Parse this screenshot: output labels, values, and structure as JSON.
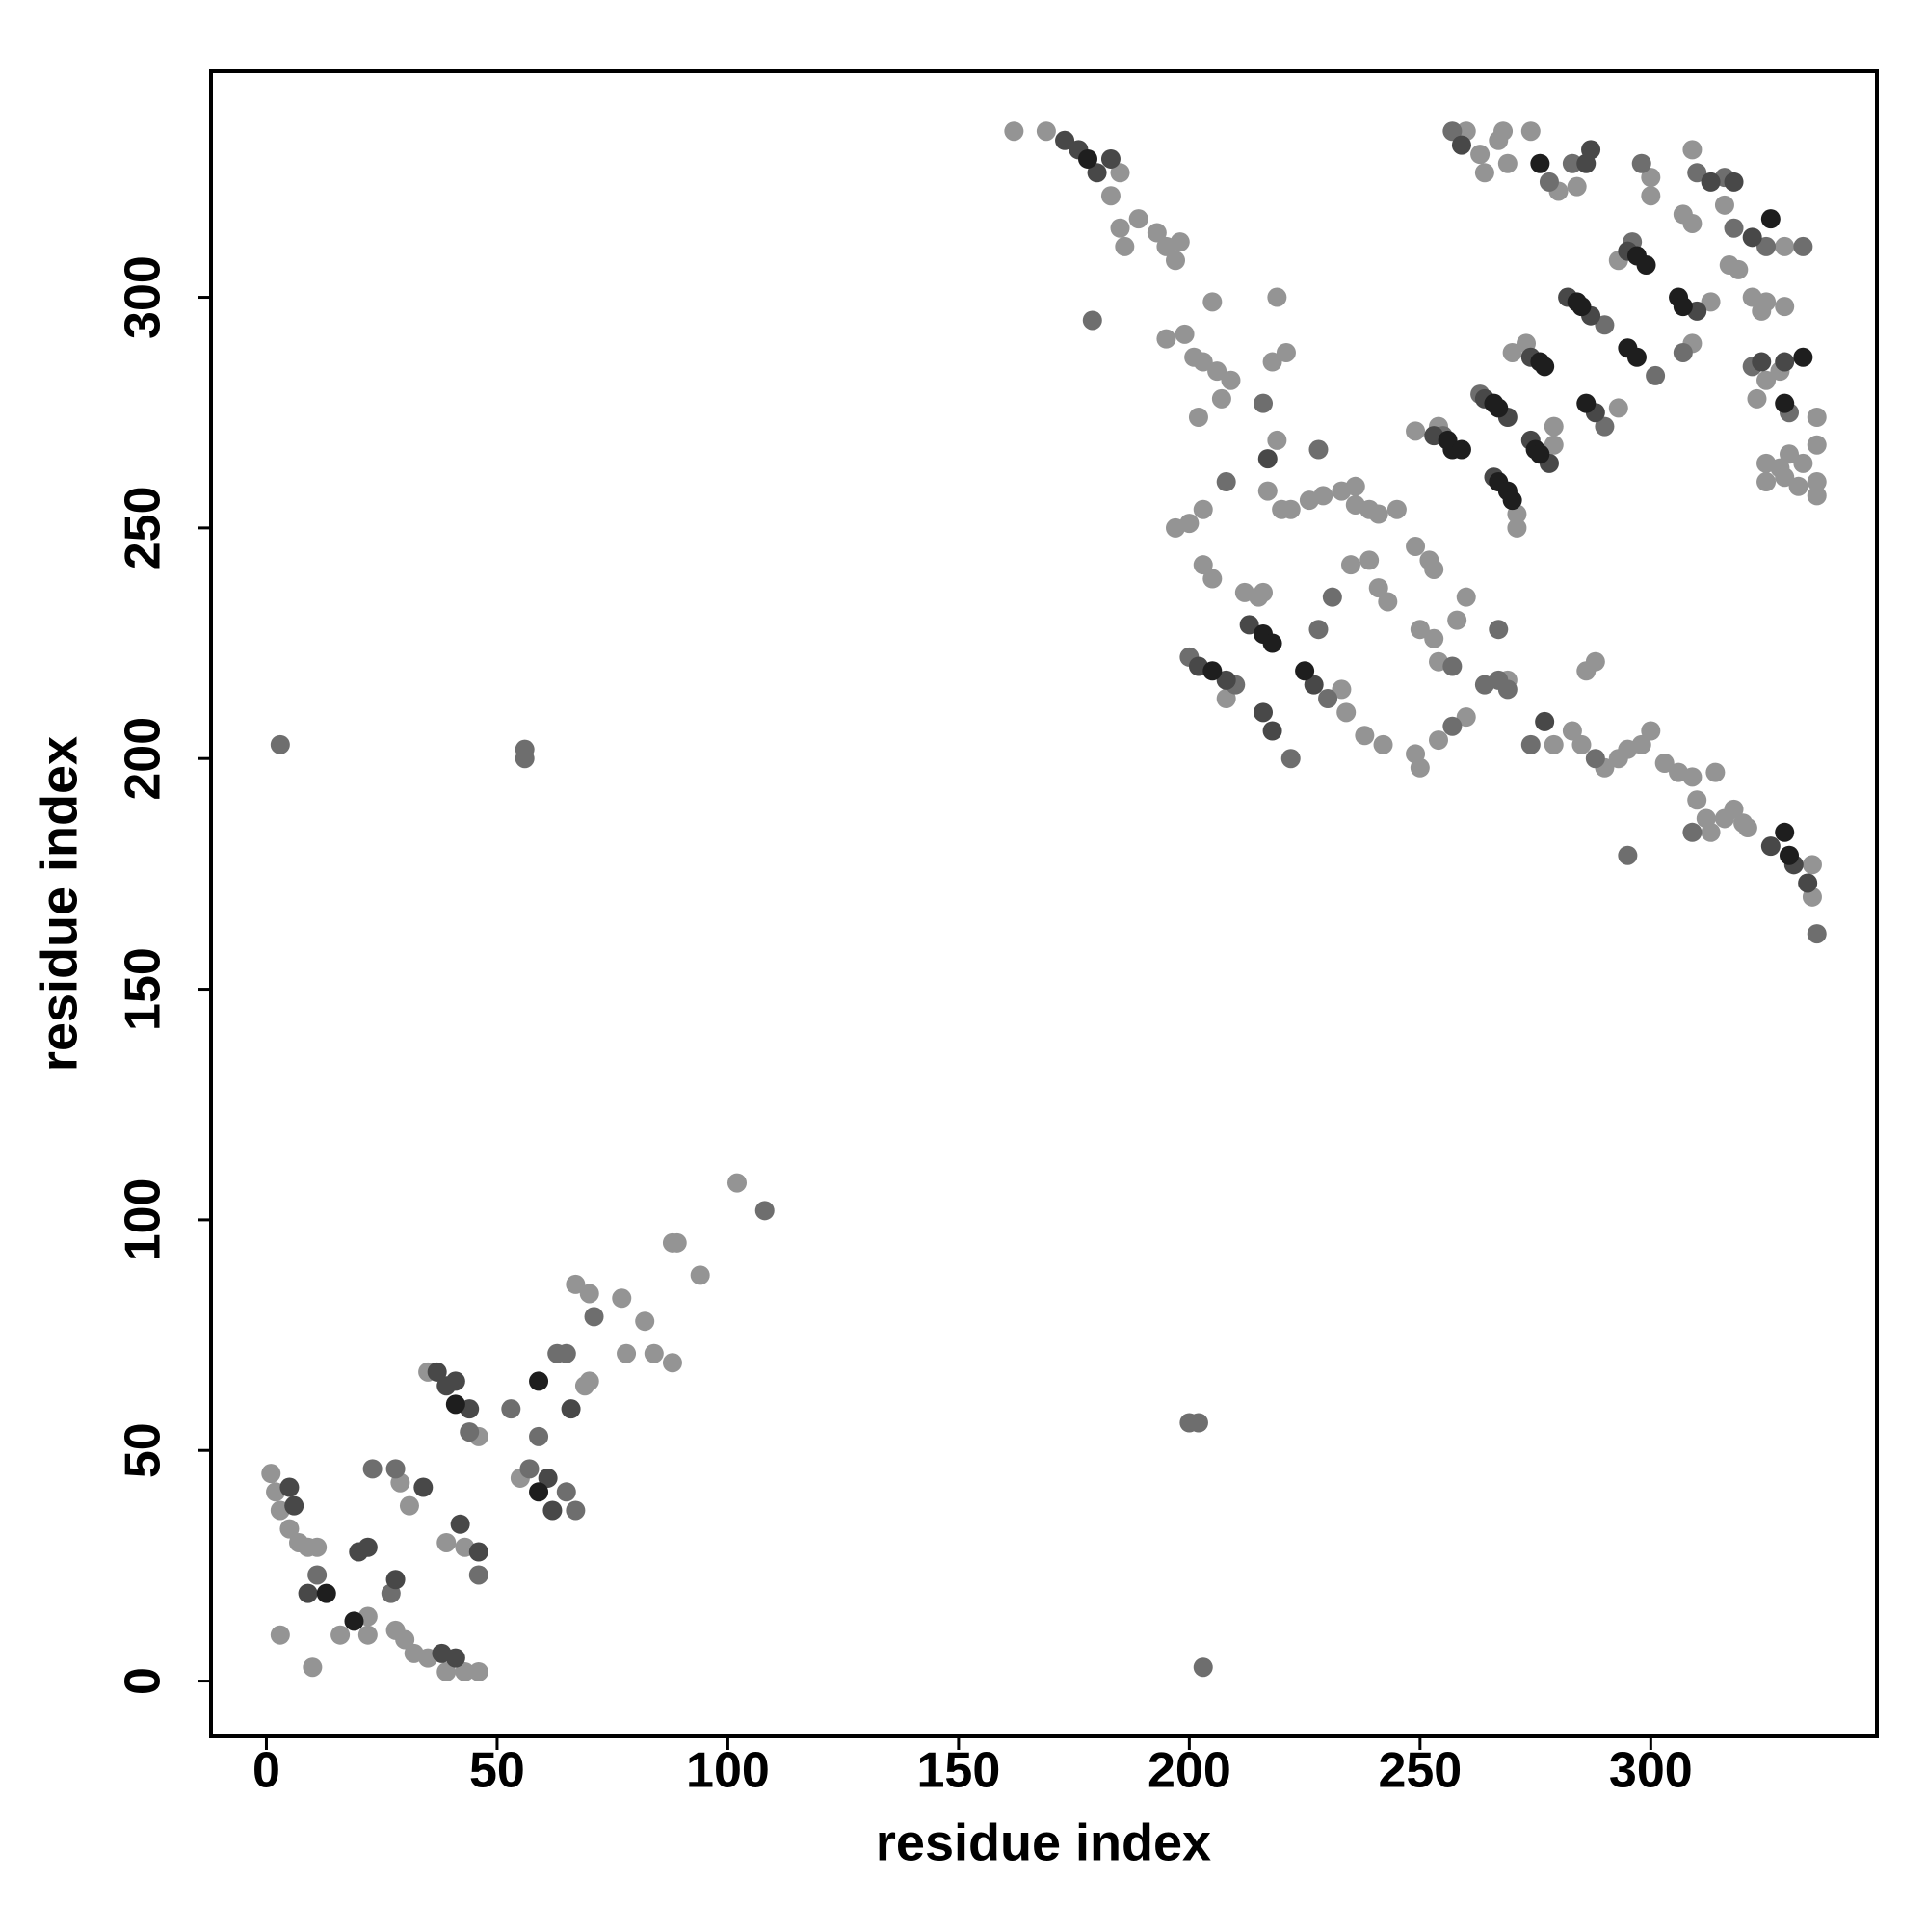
{
  "chart_data": {
    "type": "scatter",
    "x_label": "residue index",
    "y_label": "residue index",
    "xlim": [
      -12,
      349
    ],
    "ylim": [
      -12,
      349
    ],
    "xticks": [
      0,
      50,
      100,
      150,
      200,
      250,
      300
    ],
    "yticks": [
      0,
      50,
      100,
      150,
      200,
      250,
      300
    ],
    "grid": false,
    "series": [
      {
        "color": "#949494",
        "x": [
          1,
          2,
          3,
          5,
          7,
          9,
          11,
          3,
          10,
          16,
          22,
          22,
          29,
          31,
          28,
          30,
          32,
          35,
          39,
          43,
          46,
          46,
          39,
          43,
          35,
          55,
          69,
          70,
          67,
          70,
          77,
          82,
          78,
          84,
          88,
          88,
          89,
          94,
          102,
          162,
          169,
          185,
          183,
          185,
          189,
          193,
          195,
          197,
          198,
          186,
          195,
          199,
          201,
          203,
          206,
          209,
          205,
          202,
          207,
          219,
          218,
          221,
          219,
          197,
          200,
          203,
          203,
          205,
          217,
          220,
          222,
          226,
          229,
          233,
          236,
          236,
          239,
          241,
          245,
          235,
          239,
          241,
          243,
          212,
          215,
          216,
          208,
          233,
          234,
          238,
          242,
          249,
          252,
          253,
          250,
          253,
          254,
          258,
          260,
          249,
          250,
          254,
          260,
          269,
          279,
          283,
          285,
          290,
          293,
          295,
          298,
          300,
          286,
          288,
          303,
          306,
          309,
          310,
          312,
          313,
          316,
          318,
          320,
          314,
          321,
          335,
          335,
          249,
          254,
          271,
          271,
          279,
          270,
          273,
          279,
          293,
          293,
          313,
          309,
          260,
          263,
          264,
          267,
          268,
          269,
          274,
          280,
          284,
          300,
          300,
          309,
          307,
          309,
          316,
          329,
          317,
          319,
          322,
          325,
          329,
          324,
          325,
          328,
          323,
          336,
          325,
          328,
          330,
          333,
          336,
          325,
          329,
          336,
          336,
          332
        ],
        "y": [
          45,
          41,
          37,
          33,
          30,
          29,
          29,
          10,
          3,
          10,
          10,
          14,
          43,
          38,
          11,
          9,
          6,
          5,
          2,
          2,
          2,
          53,
          30,
          29,
          67,
          44,
          64,
          65,
          86,
          84,
          83,
          78,
          71,
          71,
          69,
          95,
          95,
          88,
          108,
          336,
          336,
          327,
          322,
          315,
          317,
          314,
          311,
          308,
          312,
          311,
          291,
          292,
          287,
          286,
          284,
          282,
          299,
          274,
          278,
          300,
          286,
          288,
          269,
          250,
          251,
          254,
          242,
          239,
          258,
          254,
          254,
          256,
          257,
          258,
          259,
          255,
          254,
          253,
          254,
          242,
          243,
          237,
          234,
          236,
          235,
          236,
          213,
          215,
          210,
          205,
          203,
          246,
          243,
          241,
          228,
          226,
          221,
          230,
          235,
          201,
          198,
          204,
          209,
          217,
          203,
          206,
          203,
          198,
          200,
          202,
          203,
          206,
          219,
          221,
          199,
          197,
          196,
          191,
          187,
          184,
          187,
          189,
          186,
          197,
          185,
          177,
          170,
          271,
          272,
          253,
          250,
          268,
          288,
          290,
          272,
          276,
          308,
          299,
          290,
          336,
          331,
          327,
          334,
          336,
          329,
          336,
          323,
          324,
          326,
          322,
          332,
          318,
          316,
          320,
          311,
          307,
          306,
          300,
          299,
          298,
          297,
          282,
          284,
          278,
          274,
          264,
          263,
          266,
          264,
          268,
          260,
          261,
          260,
          257,
          259
        ]
      },
      {
        "color": "#6e6e6e",
        "x": [
          11,
          23,
          27,
          28,
          44,
          46,
          53,
          57,
          65,
          67,
          59,
          63,
          65,
          71,
          108,
          3,
          56,
          56,
          200,
          202,
          203,
          179,
          216,
          228,
          208,
          231,
          228,
          200,
          210,
          230,
          222,
          257,
          257,
          264,
          267,
          267,
          269,
          274,
          288,
          295,
          309,
          336,
          255,
          263,
          290,
          290,
          301,
          296,
          307,
          257,
          278,
          283,
          298,
          310,
          316,
          318,
          325,
          333,
          322,
          330
        ],
        "y": [
          23,
          46,
          19,
          46,
          54,
          23,
          59,
          46,
          41,
          37,
          53,
          71,
          71,
          79,
          102,
          203,
          202,
          200,
          56,
          56,
          3,
          295,
          277,
          267,
          260,
          235,
          228,
          222,
          216,
          213,
          200,
          220,
          207,
          216,
          217,
          228,
          215,
          203,
          200,
          179,
          184,
          162,
          270,
          279,
          294,
          272,
          283,
          312,
          288,
          336,
          325,
          329,
          329,
          327,
          326,
          315,
          311,
          311,
          285,
          275
        ]
      },
      {
        "color": "#484848",
        "x": [
          5,
          6,
          9,
          20,
          22,
          28,
          34,
          38,
          41,
          37,
          39,
          41,
          44,
          42,
          46,
          61,
          62,
          66,
          173,
          176,
          183,
          180,
          217,
          213,
          202,
          208,
          227,
          216,
          218,
          277,
          326,
          331,
          334,
          253,
          264,
          269,
          266,
          274,
          278,
          274,
          282,
          287,
          288,
          295,
          310,
          259,
          286,
          287,
          313,
          318,
          322,
          324,
          329
        ],
        "y": [
          42,
          38,
          19,
          28,
          29,
          22,
          42,
          6,
          5,
          67,
          64,
          65,
          59,
          34,
          28,
          44,
          37,
          59,
          334,
          332,
          330,
          327,
          265,
          229,
          220,
          217,
          216,
          210,
          206,
          208,
          181,
          177,
          173,
          270,
          278,
          274,
          261,
          269,
          264,
          287,
          300,
          296,
          275,
          310,
          297,
          333,
          329,
          332,
          325,
          325,
          313,
          286,
          286
        ]
      },
      {
        "color": "#1e1e1e",
        "x": [
          13,
          19,
          41,
          59,
          59,
          178,
          216,
          218,
          205,
          225,
          329,
          330,
          256,
          257,
          259,
          266,
          267,
          267,
          269,
          270,
          275,
          276,
          276,
          277,
          284,
          285,
          286,
          295,
          297,
          297,
          299,
          306,
          307,
          276,
          326,
          333,
          329
        ],
        "y": [
          19,
          13,
          60,
          41,
          65,
          330,
          227,
          225,
          219,
          219,
          184,
          179,
          269,
          267,
          267,
          277,
          276,
          260,
          258,
          256,
          267,
          266,
          286,
          285,
          299,
          298,
          277,
          289,
          287,
          309,
          307,
          300,
          298,
          329,
          317,
          287,
          277
        ]
      }
    ]
  }
}
